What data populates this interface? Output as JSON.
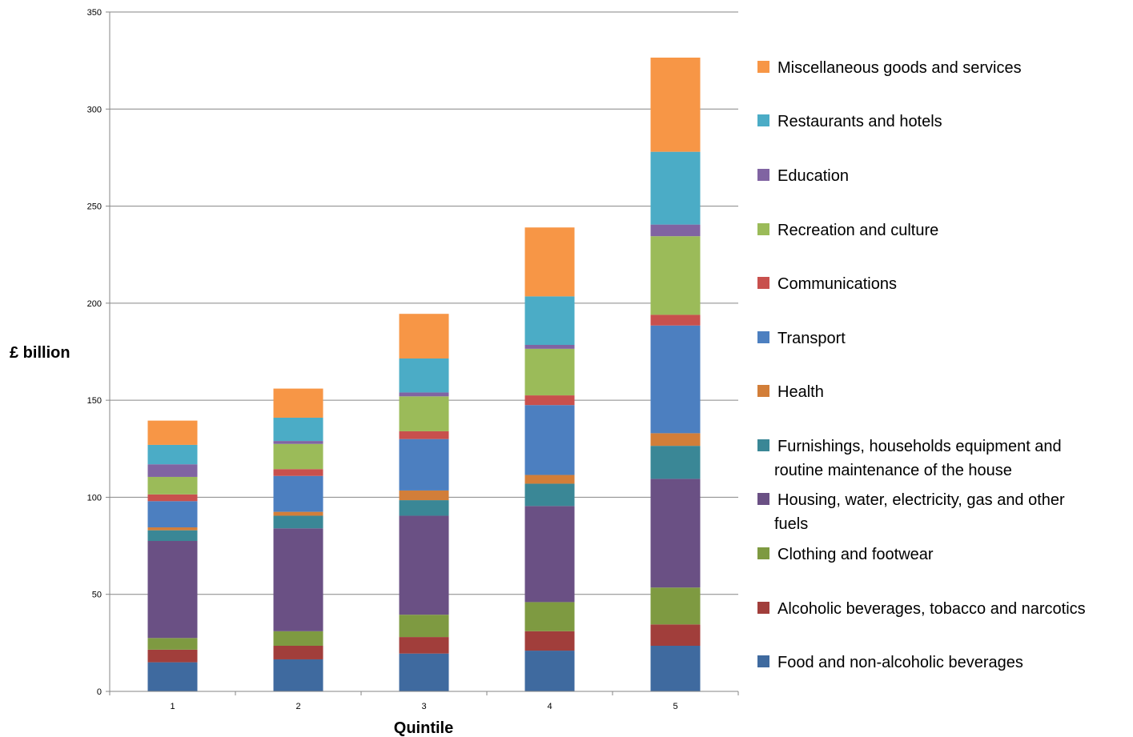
{
  "chart_data": {
    "type": "bar",
    "stacked": true,
    "title": "",
    "xlabel": "Quintile",
    "ylabel": "£ billion",
    "ylim": [
      0,
      350
    ],
    "yticks": [
      0,
      50,
      100,
      150,
      200,
      250,
      300,
      350
    ],
    "grid": true,
    "legend_position": "right",
    "categories": [
      "1",
      "2",
      "3",
      "4",
      "5"
    ],
    "series": [
      {
        "name": "Food and non-alcoholic beverages",
        "color": "#3f6a9f",
        "values": [
          15,
          16.5,
          19.5,
          21,
          23.5
        ]
      },
      {
        "name": "Alcoholic beverages, tobacco and narcotics",
        "color": "#a13e3b",
        "values": [
          6.5,
          7,
          8.5,
          10,
          11
        ]
      },
      {
        "name": "Clothing and footwear",
        "color": "#7e9a41",
        "values": [
          6,
          7.5,
          11.5,
          15,
          19
        ]
      },
      {
        "name": "Housing, water, electricity, gas and other fuels",
        "color": "#6a5084",
        "values": [
          50,
          53,
          51,
          49.5,
          56
        ]
      },
      {
        "name": "Furnishings, households equipment and routine maintenance of the house",
        "color": "#3a8796",
        "values": [
          5.5,
          6.5,
          8,
          11.5,
          17
        ]
      },
      {
        "name": "Health",
        "color": "#d27e39",
        "values": [
          1.5,
          2,
          5,
          4.5,
          6.5
        ]
      },
      {
        "name": "Transport",
        "color": "#4c7fc0",
        "values": [
          13.5,
          18.5,
          26.5,
          36,
          55.5
        ]
      },
      {
        "name": "Communications",
        "color": "#c8504d",
        "values": [
          3.5,
          3.5,
          4,
          5,
          5.5
        ]
      },
      {
        "name": "Recreation and culture",
        "color": "#9bbb59",
        "values": [
          9,
          13,
          18,
          24,
          40.5
        ]
      },
      {
        "name": "Education",
        "color": "#8064a2",
        "values": [
          6.5,
          1.5,
          2,
          2,
          6
        ]
      },
      {
        "name": "Restaurants and hotels",
        "color": "#4bacc6",
        "values": [
          10,
          12,
          17.5,
          25,
          37.5
        ]
      },
      {
        "name": "Miscellaneous goods and services",
        "color": "#f79646",
        "values": [
          12.5,
          15,
          23,
          35.5,
          48.5
        ]
      }
    ]
  }
}
